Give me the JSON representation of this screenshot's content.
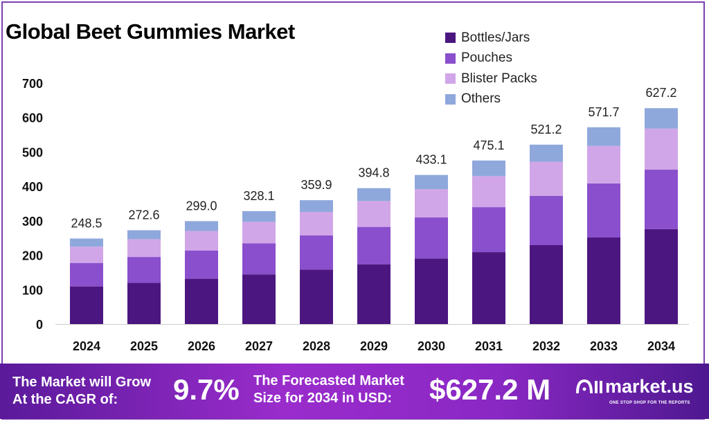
{
  "chart_data": {
    "type": "bar",
    "stacked": true,
    "title": "Global Beet Gummies Market",
    "categories": [
      "2024",
      "2025",
      "2026",
      "2027",
      "2028",
      "2029",
      "2030",
      "2031",
      "2032",
      "2033",
      "2034"
    ],
    "totals": [
      "248.5",
      "272.6",
      "299.0",
      "328.1",
      "359.9",
      "394.8",
      "433.1",
      "475.1",
      "521.2",
      "571.7",
      "627.2"
    ],
    "series": [
      {
        "name": "Bottles/Jars",
        "color": "#4b1680",
        "values": [
          109.3,
          119.9,
          131.6,
          144.4,
          158.4,
          173.7,
          190.6,
          209.0,
          229.3,
          251.5,
          276.0
        ]
      },
      {
        "name": "Pouches",
        "color": "#8a4fcc",
        "values": [
          68.3,
          75.0,
          82.2,
          90.2,
          99.0,
          108.6,
          119.1,
          130.7,
          143.3,
          157.2,
          172.5
        ]
      },
      {
        "name": "Blister Packs",
        "color": "#d1a6e8",
        "values": [
          47.2,
          51.8,
          56.8,
          62.3,
          68.4,
          75.0,
          82.3,
          90.3,
          99.0,
          108.6,
          119.2
        ]
      },
      {
        "name": "Others",
        "color": "#8fa8dc",
        "values": [
          23.7,
          25.9,
          28.4,
          31.2,
          34.1,
          37.5,
          41.1,
          45.1,
          49.6,
          54.4,
          59.5
        ]
      }
    ],
    "yticks": [
      "0",
      "100",
      "200",
      "300",
      "400",
      "500",
      "600",
      "700"
    ],
    "ylim": [
      0,
      700
    ],
    "grid": false,
    "legend": "top-right"
  },
  "footer": {
    "cagr_label_1": "The Market will Grow",
    "cagr_label_2": "At the CAGR of:",
    "cagr_value": "9.7%",
    "forecast_label_1": "The Forecasted Market",
    "forecast_label_2": "Size for 2034 in USD:",
    "forecast_value": "$627.2 M",
    "brand": "market.us",
    "tagline": "ONE STOP SHOP FOR THE REPORTS"
  }
}
